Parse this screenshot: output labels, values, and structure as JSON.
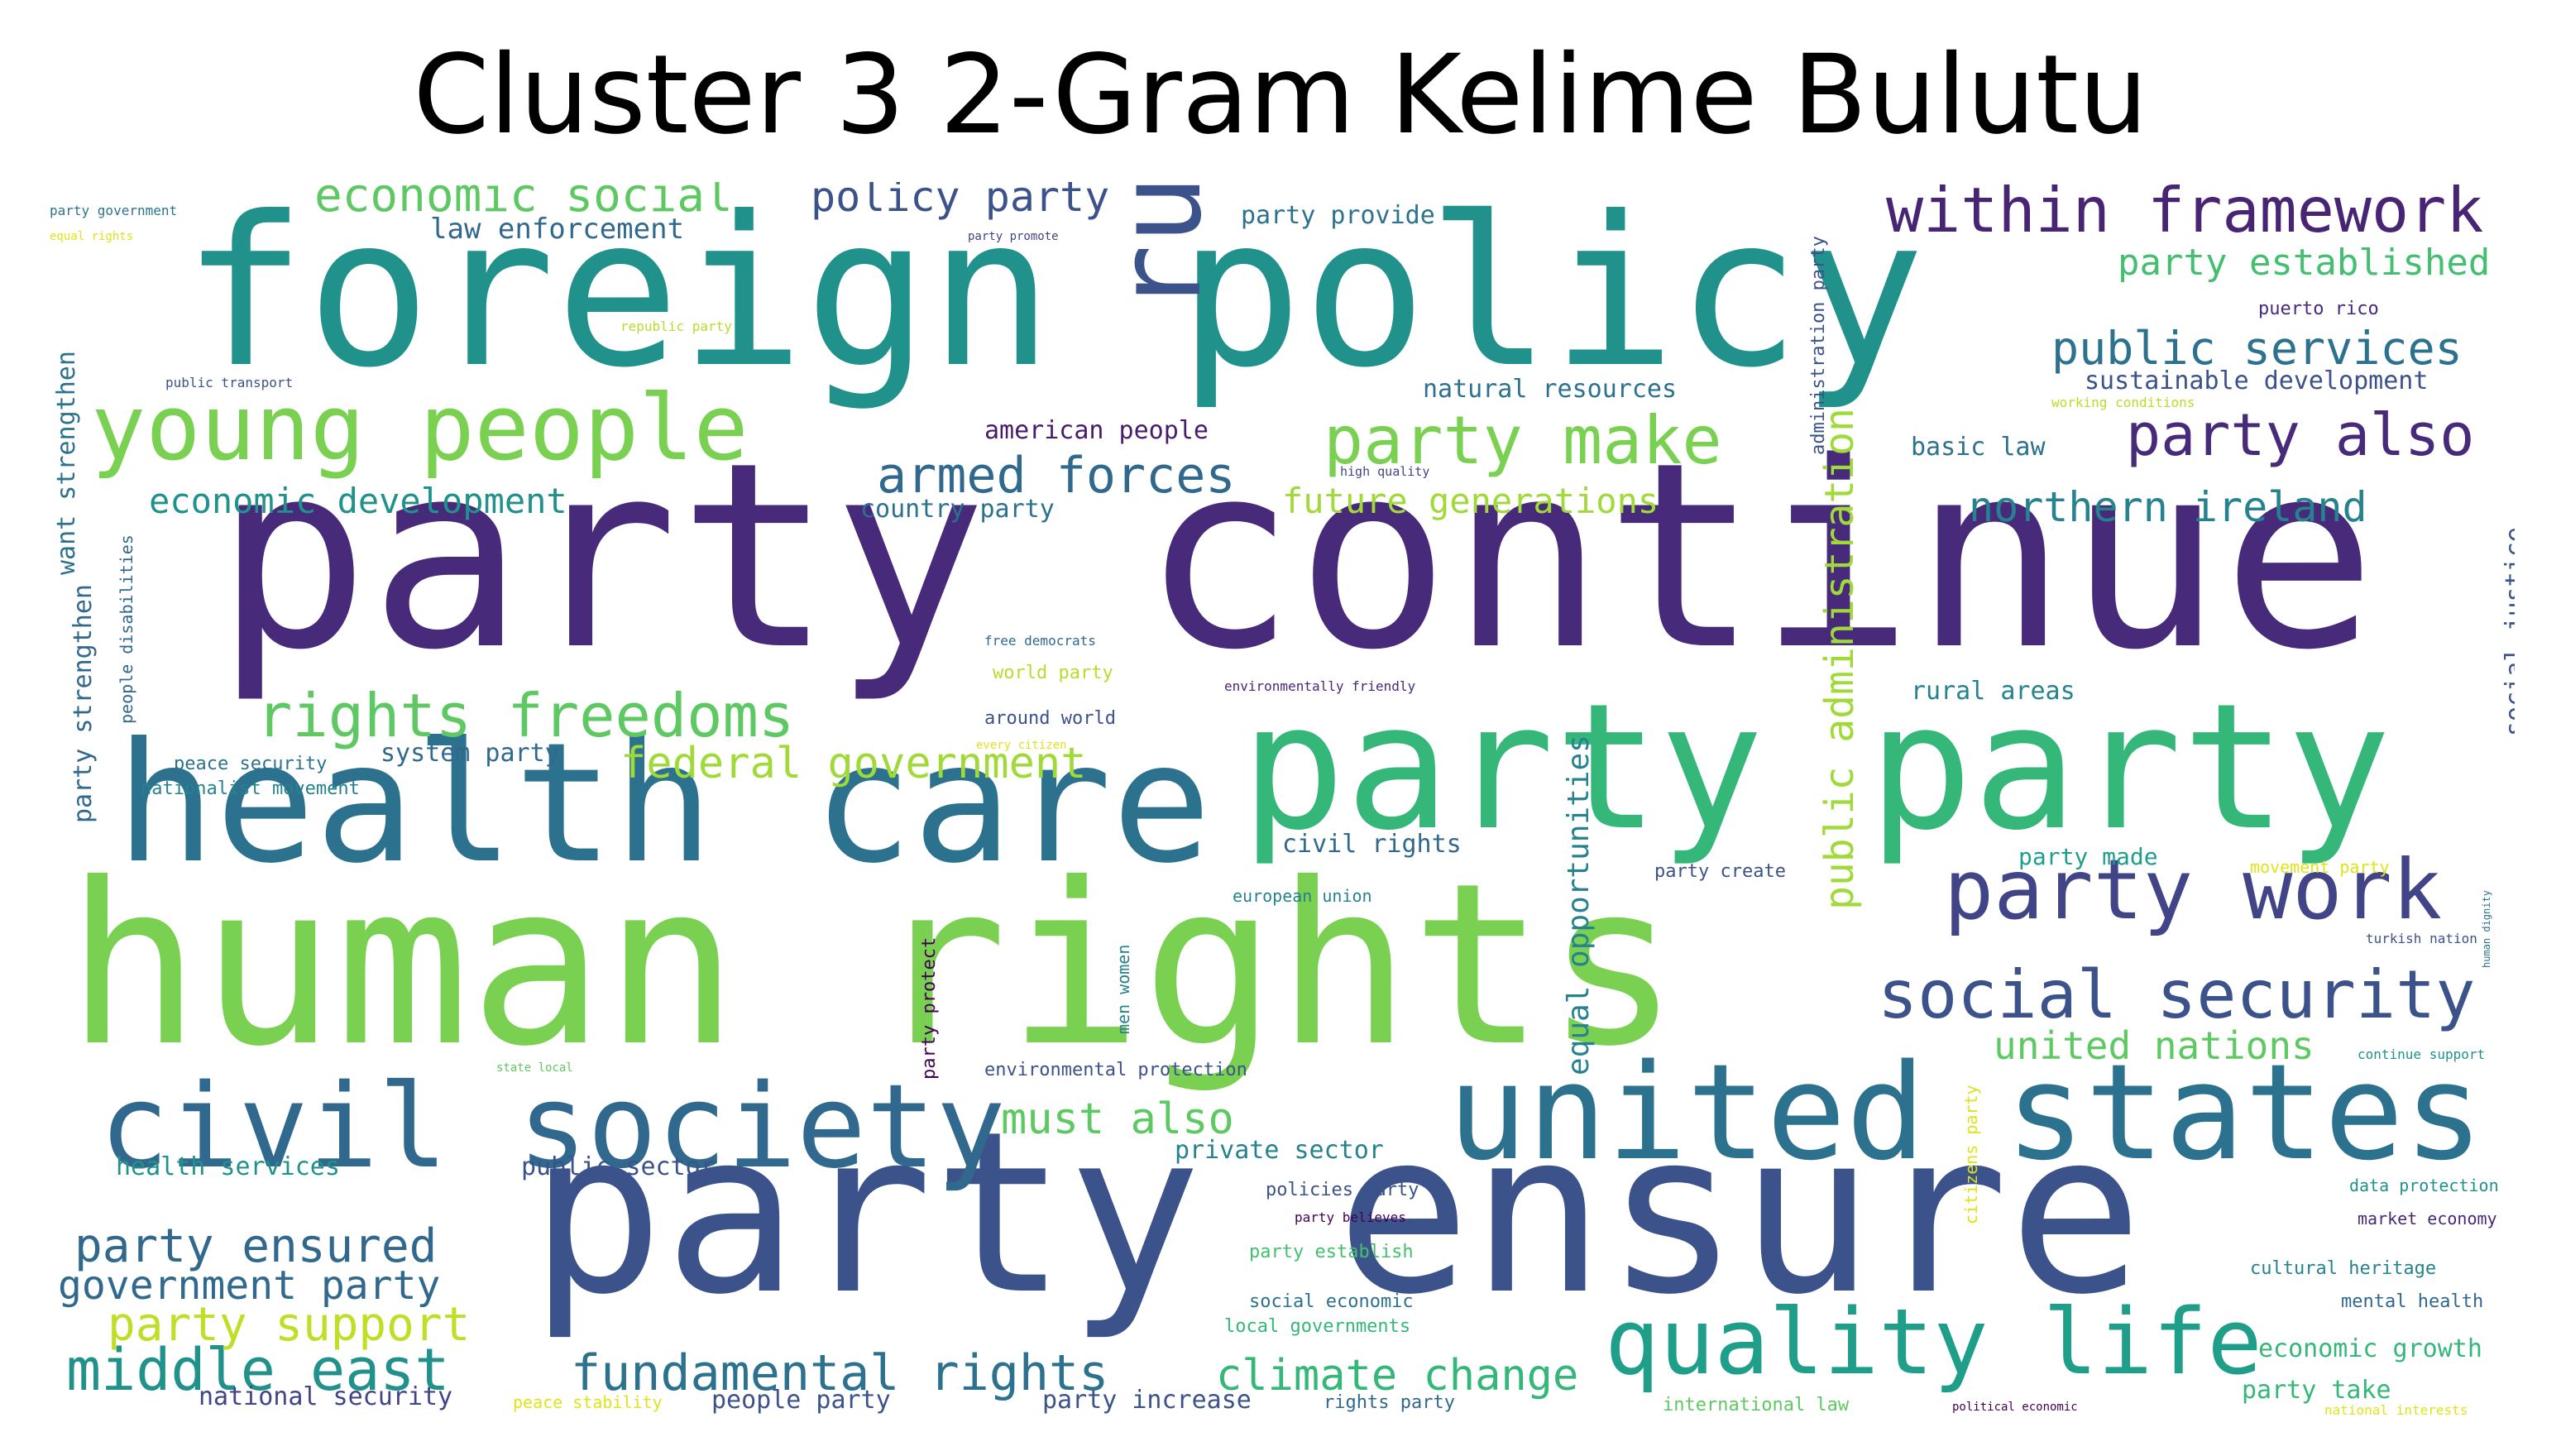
{
  "title": "Cluster 3 2-Gram Kelime Bulutu",
  "palette": "viridis",
  "words": [
    {
      "text": "party continue",
      "color": "#472a7a"
    },
    {
      "text": "human rights",
      "color": "#7ad151"
    },
    {
      "text": "foreign policy",
      "color": "#21918c"
    },
    {
      "text": "party ensure",
      "color": "#3b528b"
    },
    {
      "text": "party party",
      "color": "#35b779"
    },
    {
      "text": "health care",
      "color": "#2c728e"
    },
    {
      "text": "united states",
      "color": "#2c728e"
    },
    {
      "text": "civil society",
      "color": "#31688e"
    },
    {
      "text": "rule law",
      "color": "#3b528b"
    },
    {
      "text": "quality life",
      "color": "#1f9e89"
    },
    {
      "text": "young people",
      "color": "#7ad151"
    },
    {
      "text": "party work",
      "color": "#414487"
    },
    {
      "text": "social security",
      "color": "#3b528b"
    },
    {
      "text": "within framework",
      "color": "#482475"
    },
    {
      "text": "party make",
      "color": "#7ad151"
    },
    {
      "text": "party also",
      "color": "#472a7a"
    },
    {
      "text": "rights freedoms",
      "color": "#5ec962"
    },
    {
      "text": "middle east",
      "color": "#21918c"
    },
    {
      "text": "fundamental rights",
      "color": "#2c728e"
    },
    {
      "text": "public services",
      "color": "#2c728e"
    },
    {
      "text": "armed forces",
      "color": "#31688e"
    },
    {
      "text": "economic social",
      "color": "#5ec962"
    },
    {
      "text": "party ensured",
      "color": "#31688e"
    },
    {
      "text": "party support",
      "color": "#bddf26"
    },
    {
      "text": "climate change",
      "color": "#35b779"
    },
    {
      "text": "northern ireland",
      "color": "#26828e"
    },
    {
      "text": "federal government",
      "color": "#a0da39"
    },
    {
      "text": "public administration",
      "color": "#a0da39"
    },
    {
      "text": "policy party",
      "color": "#3b528b"
    },
    {
      "text": "must also",
      "color": "#5ec962"
    },
    {
      "text": "government party",
      "color": "#31688e"
    },
    {
      "text": "economic development",
      "color": "#21918c"
    },
    {
      "text": "future generations",
      "color": "#a0da39"
    },
    {
      "text": "party established",
      "color": "#44bf70"
    },
    {
      "text": "united nations",
      "color": "#5ec962"
    },
    {
      "text": "equal opportunities",
      "color": "#26828e"
    },
    {
      "text": "sustainable development",
      "color": "#3b528b"
    },
    {
      "text": "natural resources",
      "color": "#2c728e"
    },
    {
      "text": "law enforcement",
      "color": "#31688e"
    },
    {
      "text": "american people",
      "color": "#481b6d"
    },
    {
      "text": "country party",
      "color": "#2c728e"
    },
    {
      "text": "want strengthen",
      "color": "#2c728e"
    },
    {
      "text": "party strengthen",
      "color": "#31688e"
    },
    {
      "text": "party provide",
      "color": "#2c728e"
    },
    {
      "text": "system party",
      "color": "#31688e"
    },
    {
      "text": "civil rights",
      "color": "#31688e"
    },
    {
      "text": "party made",
      "color": "#1f9e89"
    },
    {
      "text": "rural areas",
      "color": "#26828e"
    },
    {
      "text": "basic law",
      "color": "#2c728e"
    },
    {
      "text": "social justice",
      "color": "#3b528b"
    },
    {
      "text": "private sector",
      "color": "#26828e"
    },
    {
      "text": "public sector",
      "color": "#3b528b"
    },
    {
      "text": "health services",
      "color": "#21918c"
    },
    {
      "text": "people party",
      "color": "#3b528b"
    },
    {
      "text": "party increase",
      "color": "#3b528b"
    },
    {
      "text": "national security",
      "color": "#414487"
    },
    {
      "text": "economic growth",
      "color": "#35b779"
    },
    {
      "text": "party take",
      "color": "#35b779"
    },
    {
      "text": "administration party",
      "color": "#3b528b"
    },
    {
      "text": "people disabilities",
      "color": "#31688e"
    },
    {
      "text": "party protect",
      "color": "#440154"
    },
    {
      "text": "men women",
      "color": "#26828e"
    },
    {
      "text": "citizens party",
      "color": "#dfe318"
    },
    {
      "text": "puerto rico",
      "color": "#472a7a"
    },
    {
      "text": "working conditions",
      "color": "#b5de2b"
    },
    {
      "text": "peace security",
      "color": "#2c728e"
    },
    {
      "text": "nationalist movement",
      "color": "#26828e"
    },
    {
      "text": "around world",
      "color": "#3b528b"
    },
    {
      "text": "world party",
      "color": "#b5de2b"
    },
    {
      "text": "free democrats",
      "color": "#31688e"
    },
    {
      "text": "environmentally friendly",
      "color": "#482878"
    },
    {
      "text": "european union",
      "color": "#26828e"
    },
    {
      "text": "environmental protection",
      "color": "#3b528b"
    },
    {
      "text": "policies party",
      "color": "#3b528b"
    },
    {
      "text": "party believes",
      "color": "#440154"
    },
    {
      "text": "party establish",
      "color": "#44bf70"
    },
    {
      "text": "social economic",
      "color": "#2c728e"
    },
    {
      "text": "local governments",
      "color": "#35b779"
    },
    {
      "text": "rights party",
      "color": "#31688e"
    },
    {
      "text": "peace stability",
      "color": "#dfe318"
    },
    {
      "text": "international law",
      "color": "#5ec962"
    },
    {
      "text": "political economic",
      "color": "#440154"
    },
    {
      "text": "national interests",
      "color": "#dfe318"
    },
    {
      "text": "cultural heritage",
      "color": "#26828e"
    },
    {
      "text": "mental health",
      "color": "#31688e"
    },
    {
      "text": "market economy",
      "color": "#482878"
    },
    {
      "text": "data protection",
      "color": "#21918c"
    },
    {
      "text": "continue support",
      "color": "#21918c"
    },
    {
      "text": "turkish nation",
      "color": "#3b528b"
    },
    {
      "text": "movement party",
      "color": "#dfe318"
    },
    {
      "text": "human dignity",
      "color": "#2c728e"
    },
    {
      "text": "party create",
      "color": "#3b528b"
    },
    {
      "text": "high quality",
      "color": "#414487"
    },
    {
      "text": "party promote",
      "color": "#414487"
    },
    {
      "text": "party government",
      "color": "#2c728e"
    },
    {
      "text": "equal rights",
      "color": "#dfe318"
    },
    {
      "text": "republic party",
      "color": "#b5de2b"
    },
    {
      "text": "public transport",
      "color": "#3b528b"
    },
    {
      "text": "state local",
      "color": "#5ec962"
    },
    {
      "text": "every citizen",
      "color": "#dfe318"
    }
  ]
}
